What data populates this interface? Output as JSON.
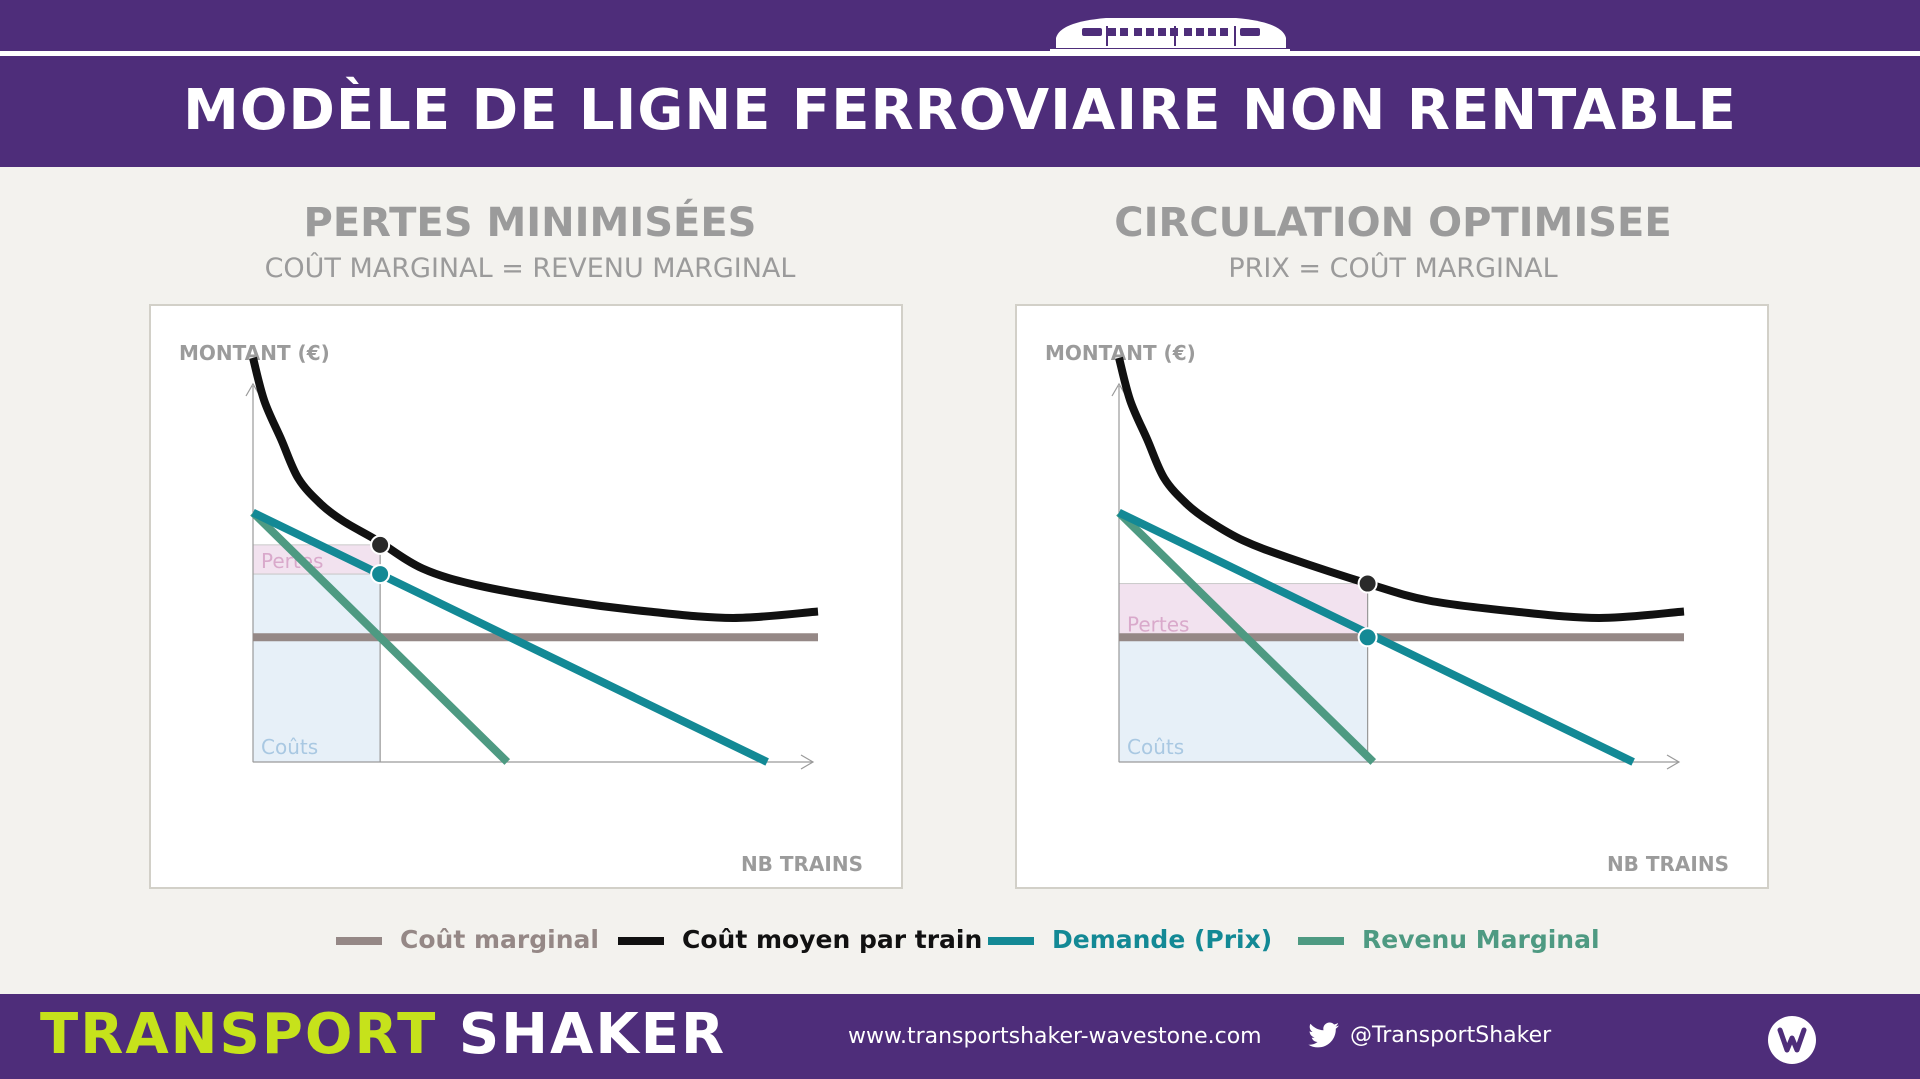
{
  "header": {
    "title": "MODÈLE DE LIGNE FERROVIAIRE NON RENTABLE",
    "icon": "train-icon"
  },
  "colors": {
    "purple": "#4e2d7a",
    "cout_marginal": "#958886",
    "cout_moyen": "#111111",
    "demande": "#138995",
    "revenu_marginal": "#4e9a82",
    "pertes_fill": "#f2e2ef",
    "couts_fill": "#e7f0f8",
    "brand_green": "#c6e21b"
  },
  "panels": [
    {
      "title": "PERTES MINIMISÉES",
      "subtitle": "COÛT MARGINAL = REVENU MARGINAL"
    },
    {
      "title": "CIRCULATION OPTIMISEE",
      "subtitle": "PRIX = COÛT MARGINAL"
    }
  ],
  "legend": [
    {
      "label": "Coût marginal",
      "color": "#958886",
      "text_color": "#958886"
    },
    {
      "label": "Coût moyen par train",
      "color": "#111111",
      "text_color": "#111111"
    },
    {
      "label": "Demande (Prix)",
      "color": "#138995",
      "text_color": "#138995"
    },
    {
      "label": "Revenu Marginal",
      "color": "#4e9a82",
      "text_color": "#4e9a82"
    }
  ],
  "chart_data": [
    {
      "type": "line",
      "title": "PERTES MINIMISÉES",
      "subtitle": "COÛT MARGINAL = REVENU MARGINAL",
      "ylabel": "MONTANT (€)",
      "xlabel": "NB TRAINS",
      "xlim": [
        0,
        100
      ],
      "ylim": [
        0,
        100
      ],
      "ticks": "none",
      "grid": false,
      "legend": "bottom",
      "series": [
        {
          "name": "Coût marginal",
          "x": [
            0,
            100
          ],
          "y": [
            29,
            29
          ]
        },
        {
          "name": "Coût moyen par train",
          "x": [
            0,
            2,
            5,
            8,
            12,
            16,
            22,
            30,
            40,
            55,
            70,
            85,
            100
          ],
          "y": [
            94,
            84,
            75,
            66,
            60,
            56,
            51.5,
            45,
            41,
            37.5,
            35,
            33.5,
            35
          ]
        },
        {
          "name": "Demande (Prix)",
          "x": [
            0,
            91
          ],
          "y": [
            58,
            0
          ]
        },
        {
          "name": "Revenu Marginal",
          "x": [
            0,
            45
          ],
          "y": [
            58,
            0
          ]
        }
      ],
      "points": [
        {
          "series": "Coût moyen par train",
          "x": 22.5,
          "y": 50.5
        },
        {
          "series": "Demande (Prix)",
          "x": 22.5,
          "y": 43.7
        }
      ],
      "areas": [
        {
          "label": "Pertes",
          "x": [
            0,
            22.5
          ],
          "y": [
            43.7,
            50.5
          ]
        },
        {
          "label": "Coûts",
          "x": [
            0,
            22.5
          ],
          "y": [
            0,
            43.7
          ]
        }
      ]
    },
    {
      "type": "line",
      "title": "CIRCULATION OPTIMISEE",
      "subtitle": "PRIX = COÛT MARGINAL",
      "ylabel": "MONTANT (€)",
      "xlabel": "NB TRAINS",
      "xlim": [
        0,
        100
      ],
      "ylim": [
        0,
        100
      ],
      "ticks": "none",
      "grid": false,
      "legend": "bottom",
      "series": [
        {
          "name": "Coût marginal",
          "x": [
            0,
            100
          ],
          "y": [
            29,
            29
          ]
        },
        {
          "name": "Coût moyen par train",
          "x": [
            0,
            2,
            5,
            8,
            12,
            16,
            22,
            30,
            44,
            55,
            70,
            85,
            100
          ],
          "y": [
            94,
            84,
            75,
            66,
            60,
            56,
            51.5,
            47.5,
            41.5,
            37.5,
            35,
            33.5,
            35
          ]
        },
        {
          "name": "Demande (Prix)",
          "x": [
            0,
            91
          ],
          "y": [
            58,
            0
          ]
        },
        {
          "name": "Revenu Marginal",
          "x": [
            0,
            45
          ],
          "y": [
            58,
            0
          ]
        }
      ],
      "points": [
        {
          "series": "Coût moyen par train",
          "x": 44,
          "y": 41.5
        },
        {
          "series": "Demande (Prix)",
          "x": 44,
          "y": 29
        }
      ],
      "areas": [
        {
          "label": "Pertes",
          "x": [
            0,
            44
          ],
          "y": [
            29,
            41.5
          ]
        },
        {
          "label": "Coûts",
          "x": [
            0,
            44
          ],
          "y": [
            0,
            29
          ]
        }
      ]
    }
  ],
  "footer": {
    "brand_part1": "TRANSPORT",
    "brand_part2": "SHAKER",
    "site": "www.transportshaker-wavestone.com",
    "twitter_handle": "@TransportShaker",
    "twitter_icon": "twitter-bird-icon",
    "logo_icon": "wavestone-w-icon"
  }
}
